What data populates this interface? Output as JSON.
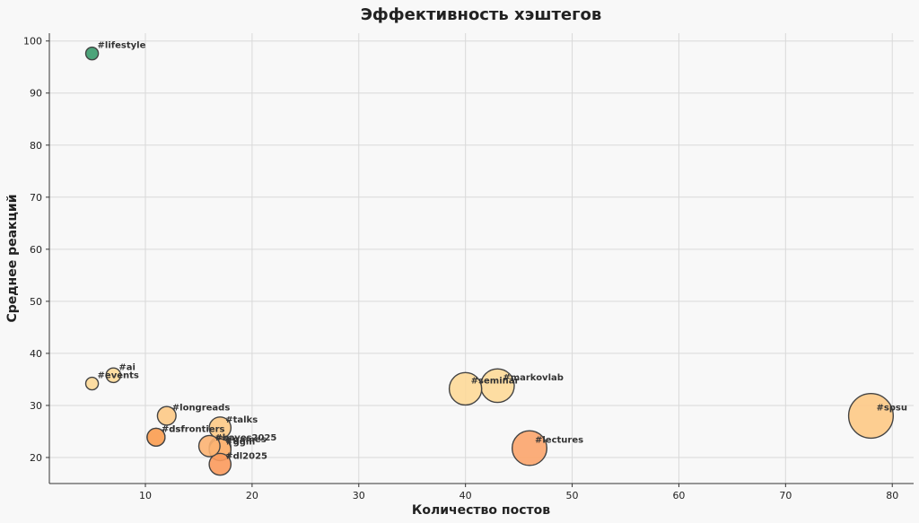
{
  "chart_data": {
    "type": "scatter",
    "title": "Эффективность хэштегов",
    "xlabel": "Количество постов",
    "ylabel": "Среднее реакций",
    "xlim": [
      1,
      82
    ],
    "ylim": [
      15,
      101.5
    ],
    "xticks": [
      10,
      20,
      30,
      40,
      50,
      60,
      70,
      80
    ],
    "yticks": [
      20,
      30,
      40,
      50,
      60,
      70,
      80,
      90,
      100
    ],
    "grid": true,
    "points": [
      {
        "label": "#lifestyle",
        "x": 5,
        "y": 97.6,
        "color": "#3a9a6c"
      },
      {
        "label": "#ai",
        "x": 7,
        "y": 35.8,
        "color": "#fdd998"
      },
      {
        "label": "#events",
        "x": 5,
        "y": 34.2,
        "color": "#fdd998"
      },
      {
        "label": "#longreads",
        "x": 12,
        "y": 28.0,
        "color": "#fdc985"
      },
      {
        "label": "#talks",
        "x": 17,
        "y": 25.7,
        "color": "#fdc985"
      },
      {
        "label": "#dsfrontiers",
        "x": 11,
        "y": 23.9,
        "color": "#fba55e"
      },
      {
        "label": "#dsf",
        "x": 11,
        "y": 23.9,
        "color": "#fba55e"
      },
      {
        "label": "#bayes2025",
        "x": 16,
        "y": 22.2,
        "color": "#fcb372"
      },
      {
        "label": "#games",
        "x": 17,
        "y": 21.9,
        "color": "#fcb372"
      },
      {
        "label": "#ggm",
        "x": 17,
        "y": 21.5,
        "color": "#fcb372"
      },
      {
        "label": "#dl2025",
        "x": 17,
        "y": 18.7,
        "color": "#fb9a5c"
      },
      {
        "label": "#seminar",
        "x": 40,
        "y": 33.2,
        "color": "#fdd998"
      },
      {
        "label": "#markovlab",
        "x": 43,
        "y": 33.8,
        "color": "#fdd998"
      },
      {
        "label": "#lectures",
        "x": 46,
        "y": 21.8,
        "color": "#fba46c"
      },
      {
        "label": "#spsu",
        "x": 78,
        "y": 28.0,
        "color": "#fdc985"
      }
    ]
  }
}
